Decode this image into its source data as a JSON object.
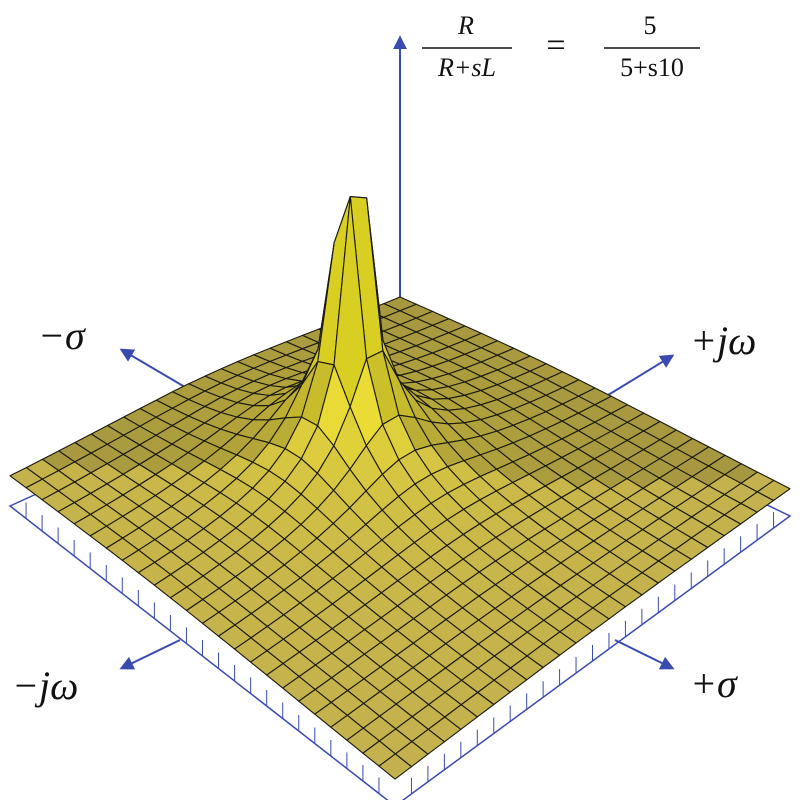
{
  "formula": {
    "lhs": {
      "numerator": "R",
      "denominator": "R+sL"
    },
    "equals": "=",
    "rhs": {
      "numerator": "5",
      "denominator": "5+s10"
    }
  },
  "axes": {
    "neg_sigma": "−σ",
    "pos_jomega": "+jω",
    "neg_jomega": "−jω",
    "pos_sigma": "+σ"
  }
}
